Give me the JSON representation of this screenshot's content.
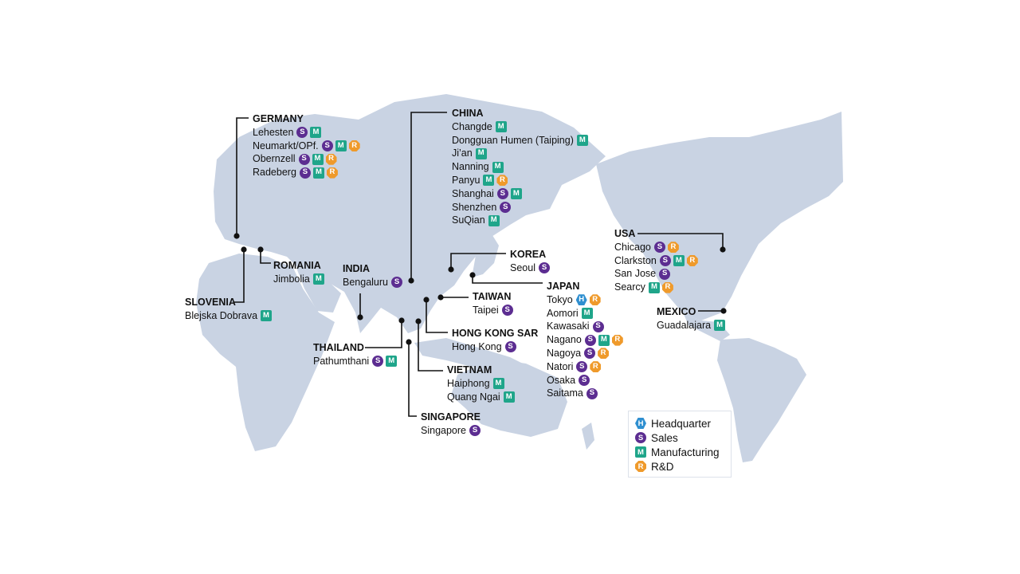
{
  "legend": {
    "items": [
      {
        "code": "H",
        "label": "Headquarter"
      },
      {
        "code": "S",
        "label": "Sales"
      },
      {
        "code": "M",
        "label": "Manufacturing"
      },
      {
        "code": "R",
        "label": "R&D"
      }
    ]
  },
  "colors": {
    "land": "#c9d3e3",
    "sales": "#5c2d91",
    "manufacturing": "#1fa58a",
    "rnd": "#ef9a2b",
    "headquarter": "#2f8fd0"
  },
  "regions": [
    {
      "id": "germany",
      "country": "GERMANY",
      "cities": [
        {
          "name": "Lehesten",
          "badges": [
            "S",
            "M"
          ]
        },
        {
          "name": "Neumarkt/OPf.",
          "badges": [
            "S",
            "M",
            "R"
          ]
        },
        {
          "name": "Obernzell",
          "badges": [
            "S",
            "M",
            "R"
          ]
        },
        {
          "name": "Radeberg",
          "badges": [
            "S",
            "M",
            "R"
          ]
        }
      ]
    },
    {
      "id": "china",
      "country": "CHINA",
      "cities": [
        {
          "name": "Changde",
          "badges": [
            "M"
          ]
        },
        {
          "name": "Dongguan Humen (Taiping)",
          "badges": [
            "M"
          ]
        },
        {
          "name": "Ji’an",
          "badges": [
            "M"
          ]
        },
        {
          "name": "Nanning",
          "badges": [
            "M"
          ]
        },
        {
          "name": "Panyu",
          "badges": [
            "M",
            "R"
          ]
        },
        {
          "name": "Shanghai",
          "badges": [
            "S",
            "M"
          ]
        },
        {
          "name": "Shenzhen",
          "badges": [
            "S"
          ]
        },
        {
          "name": "SuQian",
          "badges": [
            "M"
          ]
        }
      ]
    },
    {
      "id": "romania",
      "country": "ROMANIA",
      "cities": [
        {
          "name": "Jimbolia",
          "badges": [
            "M"
          ]
        }
      ]
    },
    {
      "id": "slovenia",
      "country": "SLOVENIA",
      "cities": [
        {
          "name": "Blejska Dobrava",
          "badges": [
            "M"
          ]
        }
      ]
    },
    {
      "id": "india",
      "country": "INDIA",
      "cities": [
        {
          "name": "Bengaluru",
          "badges": [
            "S"
          ]
        }
      ]
    },
    {
      "id": "korea",
      "country": "KOREA",
      "cities": [
        {
          "name": "Seoul",
          "badges": [
            "S"
          ]
        }
      ]
    },
    {
      "id": "taiwan",
      "country": "TAIWAN",
      "cities": [
        {
          "name": "Taipei",
          "badges": [
            "S"
          ]
        }
      ]
    },
    {
      "id": "japan",
      "country": "JAPAN",
      "cities": [
        {
          "name": "Tokyo",
          "badges": [
            "H",
            "R"
          ]
        },
        {
          "name": "Aomori",
          "badges": [
            "M"
          ]
        },
        {
          "name": "Kawasaki",
          "badges": [
            "S"
          ]
        },
        {
          "name": "Nagano",
          "badges": [
            "S",
            "M",
            "R"
          ]
        },
        {
          "name": "Nagoya",
          "badges": [
            "S",
            "R"
          ]
        },
        {
          "name": "Natori",
          "badges": [
            "S",
            "R"
          ]
        },
        {
          "name": "Osaka",
          "badges": [
            "S"
          ]
        },
        {
          "name": "Saitama",
          "badges": [
            "S"
          ]
        }
      ]
    },
    {
      "id": "hongkong",
      "country": "HONG KONG SAR",
      "cities": [
        {
          "name": "Hong Kong",
          "badges": [
            "S"
          ]
        }
      ]
    },
    {
      "id": "thailand",
      "country": "THAILAND",
      "cities": [
        {
          "name": "Pathumthani",
          "badges": [
            "S",
            "M"
          ]
        }
      ]
    },
    {
      "id": "vietnam",
      "country": "VIETNAM",
      "cities": [
        {
          "name": "Haiphong",
          "badges": [
            "M"
          ]
        },
        {
          "name": "Quang Ngai",
          "badges": [
            "M"
          ]
        }
      ]
    },
    {
      "id": "singapore",
      "country": "SINGAPORE",
      "cities": [
        {
          "name": "Singapore",
          "badges": [
            "S"
          ]
        }
      ]
    },
    {
      "id": "usa",
      "country": "USA",
      "cities": [
        {
          "name": "Chicago",
          "badges": [
            "S",
            "R"
          ]
        },
        {
          "name": "Clarkston",
          "badges": [
            "S",
            "M",
            "R"
          ]
        },
        {
          "name": "San Jose",
          "badges": [
            "S"
          ]
        },
        {
          "name": "Searcy",
          "badges": [
            "M",
            "R"
          ]
        }
      ]
    },
    {
      "id": "mexico",
      "country": "MEXICO",
      "cities": [
        {
          "name": "Guadalajara",
          "badges": [
            "M"
          ]
        }
      ]
    }
  ]
}
